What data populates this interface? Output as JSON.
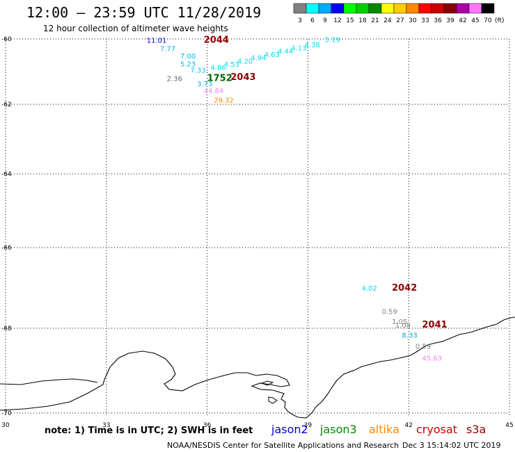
{
  "header": {
    "title": "12:00 – 23:59 UTC 11/28/2019",
    "subtitle": "12 hour collection of altimeter wave heights"
  },
  "legend": {
    "unit": "(ft)",
    "bins": [
      {
        "label": "3",
        "color": "#808080"
      },
      {
        "label": "6",
        "color": "#00ffff"
      },
      {
        "label": "9",
        "color": "#00aaff"
      },
      {
        "label": "12",
        "color": "#0000ff"
      },
      {
        "label": "15",
        "color": "#00ff00"
      },
      {
        "label": "18",
        "color": "#00cc00"
      },
      {
        "label": "21",
        "color": "#008800"
      },
      {
        "label": "24",
        "color": "#ffff00"
      },
      {
        "label": "27",
        "color": "#ffcc00"
      },
      {
        "label": "30",
        "color": "#ff8800"
      },
      {
        "label": "33",
        "color": "#ff0000"
      },
      {
        "label": "36",
        "color": "#cc0000"
      },
      {
        "label": "39",
        "color": "#880000"
      },
      {
        "label": "42",
        "color": "#aa00aa"
      },
      {
        "label": "45",
        "color": "#ff77ff"
      },
      {
        "label": "70",
        "color": "#000000"
      }
    ]
  },
  "map": {
    "lon_range": [
      30,
      45
    ],
    "lat_range": [
      -70,
      -60
    ],
    "x_ticks": [
      "30",
      "33",
      "36",
      "39",
      "42",
      "45"
    ],
    "y_ticks": [
      "-60",
      "-62",
      "-64",
      "-66",
      "-68",
      "-70"
    ],
    "grid": "dotted",
    "swh_labels": [
      {
        "text": "11.01",
        "lon": 34.2,
        "lat": -60.12,
        "color": "#0000cc"
      },
      {
        "text": "2044",
        "lon": 35.9,
        "lat": -60.12,
        "color": "#8b0000"
      },
      {
        "text": "7.77",
        "lon": 34.6,
        "lat": -60.37,
        "color": "#00bbee"
      },
      {
        "text": "7.00",
        "lon": 35.2,
        "lat": -60.6,
        "color": "#00bbee"
      },
      {
        "text": "5.23",
        "lon": 35.2,
        "lat": -60.84,
        "color": "#00bbee"
      },
      {
        "text": "7.33",
        "lon": 35.5,
        "lat": -61.03,
        "color": "#00bbee"
      },
      {
        "text": "2.36",
        "lon": 34.8,
        "lat": -61.29,
        "color": "#666666"
      },
      {
        "text": "1752",
        "lon": 36.0,
        "lat": -61.29,
        "color": "#006600"
      },
      {
        "text": "2043",
        "lon": 36.7,
        "lat": -61.25,
        "color": "#8b0000"
      },
      {
        "text": "3.73",
        "lon": 35.7,
        "lat": -61.45,
        "color": "#00bbee"
      },
      {
        "text": "44.84",
        "lon": 35.9,
        "lat": -61.66,
        "color": "#ee88ee"
      },
      {
        "text": "29.32",
        "lon": 36.2,
        "lat": -61.95,
        "color": "#ff8800"
      },
      {
        "text": "4.86",
        "lon": 36.1,
        "lat": -60.95,
        "color": "#00ddee"
      },
      {
        "text": "4.53",
        "lon": 36.5,
        "lat": -60.85,
        "color": "#00ddee"
      },
      {
        "text": "4.20",
        "lon": 36.9,
        "lat": -60.75,
        "color": "#00ddee"
      },
      {
        "text": "4.94",
        "lon": 37.3,
        "lat": -60.65,
        "color": "#00ddee"
      },
      {
        "text": "4.63",
        "lon": 37.7,
        "lat": -60.55,
        "color": "#00ddee"
      },
      {
        "text": "4.44",
        "lon": 38.1,
        "lat": -60.45,
        "color": "#00ddee"
      },
      {
        "text": "4.13",
        "lon": 38.5,
        "lat": -60.35,
        "color": "#00ddee"
      },
      {
        "text": "4.38",
        "lon": 38.9,
        "lat": -60.25,
        "color": "#00ddee"
      },
      {
        "text": "5.19",
        "lon": 39.5,
        "lat": -60.1,
        "color": "#00ddee"
      },
      {
        "text": "4.02",
        "lon": 40.6,
        "lat": -67.07,
        "color": "#00ddee"
      },
      {
        "text": "2042",
        "lon": 41.5,
        "lat": -67.07,
        "color": "#8b0000"
      },
      {
        "text": "0.59",
        "lon": 41.2,
        "lat": -67.65,
        "color": "#808080"
      },
      {
        "text": "1.05",
        "lon": 41.5,
        "lat": -67.9,
        "color": "#808080"
      },
      {
        "text": "1.08",
        "lon": 41.6,
        "lat": -67.98,
        "color": "#808080"
      },
      {
        "text": "2041",
        "lon": 42.4,
        "lat": -67.98,
        "color": "#8b0000"
      },
      {
        "text": "8.33",
        "lon": 41.8,
        "lat": -68.22,
        "color": "#00aacc"
      },
      {
        "text": "0.59",
        "lon": 42.2,
        "lat": -68.48,
        "color": "#808080"
      },
      {
        "text": "45.63",
        "lon": 42.4,
        "lat": -68.76,
        "color": "#ee88ee"
      }
    ]
  },
  "footer": {
    "note": "note: 1) Time is in UTC; 2) SWH is in feet",
    "satellites": [
      {
        "name": "jason2",
        "color": "#0000cc"
      },
      {
        "name": "jason3",
        "color": "#008800"
      },
      {
        "name": "altika",
        "color": "#ff8800"
      },
      {
        "name": "cryosat",
        "color": "#cc0000"
      },
      {
        "name": "s3a",
        "color": "#8b0000"
      }
    ],
    "credit": "NOAA/NESDIS Center for Satellite Applications and Research",
    "date": "Dec  3 15:14:02 UTC 2019"
  }
}
